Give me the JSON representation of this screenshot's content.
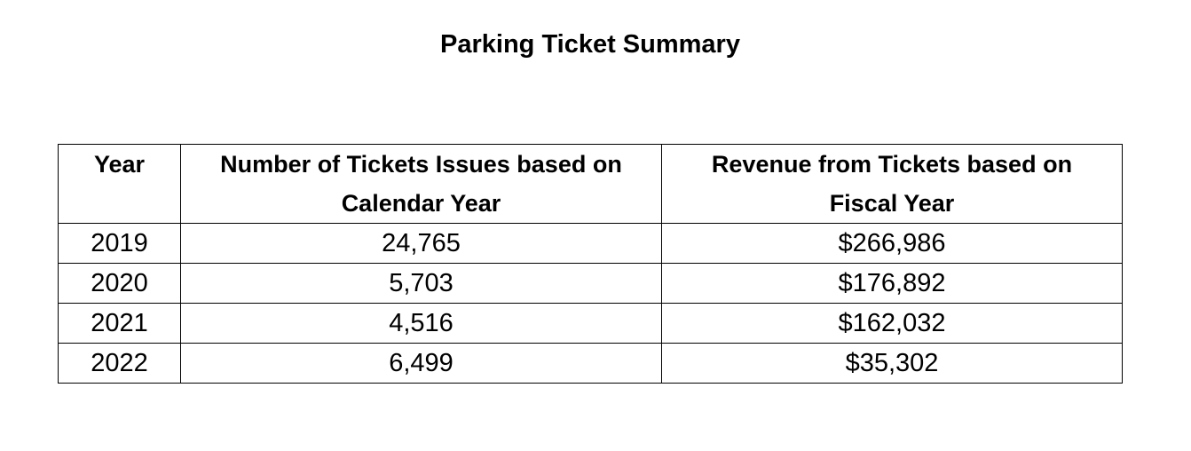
{
  "title": "Parking Ticket Summary",
  "chart_data": {
    "type": "table",
    "title": "Parking Ticket Summary",
    "columns": [
      "Year",
      "Number of Tickets Issues based on Calendar Year",
      "Revenue from Tickets based on Fiscal Year"
    ],
    "header_lines": [
      [
        "Year"
      ],
      [
        "Number of Tickets Issues based on",
        "Calendar Year"
      ],
      [
        "Revenue from Tickets based on",
        "Fiscal Year"
      ]
    ],
    "rows": [
      {
        "year": "2019",
        "tickets": "24,765",
        "revenue": "$266,986"
      },
      {
        "year": "2020",
        "tickets": "5,703",
        "revenue": "$176,892"
      },
      {
        "year": "2021",
        "tickets": "4,516",
        "revenue": "$162,032"
      },
      {
        "year": "2022",
        "tickets": "6,499",
        "revenue": "$35,302"
      }
    ]
  }
}
